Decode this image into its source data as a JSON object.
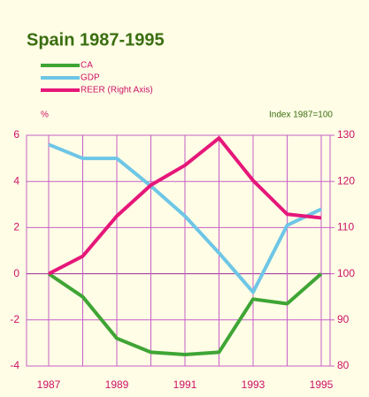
{
  "chart_data": {
    "type": "line",
    "title": "Spain 1987-1995",
    "y_label": "%",
    "y2_label": "Index 1987=100",
    "categories": [
      "1987",
      null,
      "1989",
      null,
      "1991",
      null,
      "1993",
      null,
      "1995"
    ],
    "series": [
      {
        "name": "CA",
        "color": "#3fa535",
        "values": [
          0,
          -1,
          -2.8,
          -3.4,
          -3.5,
          -3.4,
          -1.1,
          -1.3,
          0
        ]
      },
      {
        "name": "GDP",
        "color": "#6ec6e6",
        "values": [
          5.6,
          5.0,
          5.0,
          3.8,
          2.5,
          0.9,
          -0.8,
          2.1,
          2.8
        ]
      },
      {
        "name": "REER (Right Axis)",
        "color": "#e6177a",
        "axis": "y2",
        "values": [
          100,
          103.8,
          112.5,
          119.2,
          123.5,
          129.4,
          120.2,
          112.9,
          112.1
        ]
      }
    ],
    "ylim": [
      -4,
      6
    ],
    "yticks": [
      -4,
      -2,
      0,
      2,
      4,
      6
    ],
    "y2lim": [
      80,
      130
    ],
    "y2ticks": [
      80,
      90,
      100,
      110,
      120,
      130
    ],
    "grid": true
  }
}
